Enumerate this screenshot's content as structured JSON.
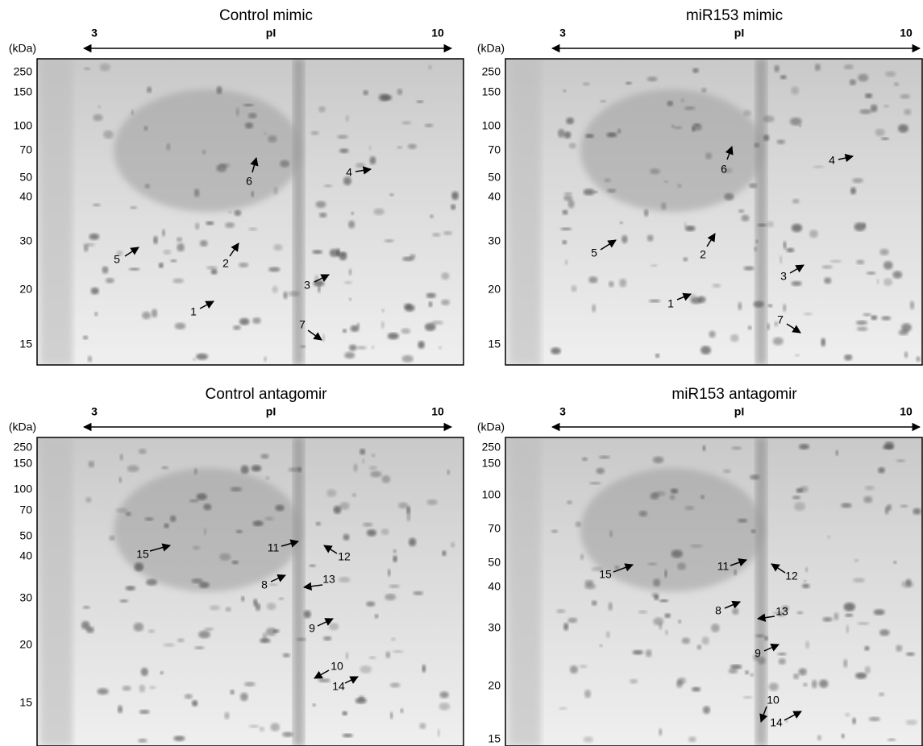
{
  "panels": [
    {
      "title": "Control mimic",
      "pi_axis": {
        "low": "3",
        "label": "pI",
        "high": "10"
      },
      "mass_unit": "(kDa)",
      "markers": [
        250,
        150,
        100,
        70,
        50,
        40,
        30,
        20,
        15
      ],
      "spot_labels": [
        "5",
        "2",
        "1",
        "3",
        "7",
        "4",
        "6"
      ]
    },
    {
      "title": "miR153 mimic",
      "pi_axis": {
        "low": "3",
        "label": "pI",
        "high": "10"
      },
      "mass_unit": "(kDa)",
      "markers": [
        250,
        150,
        100,
        70,
        50,
        40,
        30,
        20,
        15
      ],
      "spot_labels": [
        "5",
        "2",
        "1",
        "3",
        "7",
        "4",
        "6"
      ]
    },
    {
      "title": "Control antagomir",
      "pi_axis": {
        "low": "3",
        "label": "pI",
        "high": "10"
      },
      "mass_unit": "(kDa)",
      "markers": [
        250,
        150,
        100,
        70,
        50,
        40,
        30,
        20,
        15
      ],
      "spot_labels": [
        "15",
        "11",
        "12",
        "8",
        "13",
        "9",
        "10",
        "14"
      ]
    },
    {
      "title": "miR153 antagomir",
      "pi_axis": {
        "low": "3",
        "label": "pI",
        "high": "10"
      },
      "mass_unit": "(kDa)",
      "markers": [
        250,
        150,
        100,
        70,
        50,
        40,
        30,
        20,
        15
      ],
      "spot_labels": [
        "15",
        "11",
        "12",
        "8",
        "13",
        "9",
        "10",
        "14"
      ]
    }
  ]
}
